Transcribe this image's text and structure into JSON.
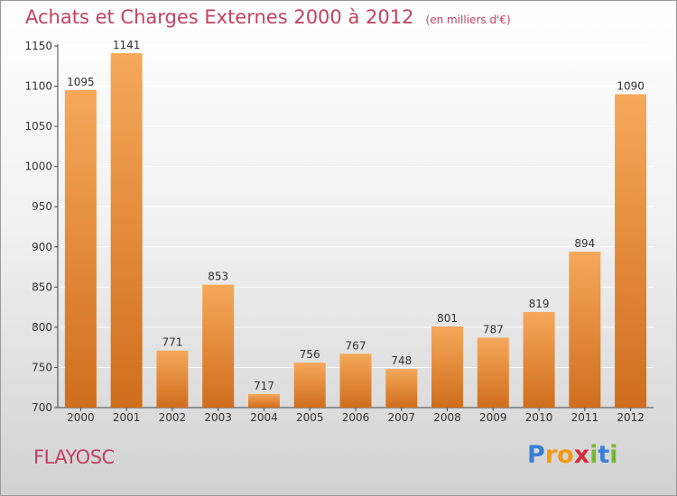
{
  "title": "Achats et Charges Externes 2000 à 2012",
  "unit_note": "(en milliers d'€)",
  "commune": "FLAYOSC",
  "logo": {
    "text": "Proxiti",
    "letters": [
      {
        "ch": "P",
        "color": "#3a7fd6"
      },
      {
        "ch": "r",
        "color": "#f19a16"
      },
      {
        "ch": "o",
        "color": "#f19a16"
      },
      {
        "ch": "x",
        "color": "#cf2e3c"
      },
      {
        "ch": "i",
        "color": "#77b830"
      },
      {
        "ch": "t",
        "color": "#3a7fd6"
      },
      {
        "ch": "i",
        "color": "#77b830"
      }
    ]
  },
  "colors": {
    "title": "#c14260",
    "bar_light": "#f6a85a",
    "bar_dark": "#cf6e1c",
    "axis": "#444444"
  },
  "chart_data": {
    "type": "bar",
    "categories": [
      "2000",
      "2001",
      "2002",
      "2003",
      "2004",
      "2005",
      "2006",
      "2007",
      "2008",
      "2009",
      "2010",
      "2011",
      "2012"
    ],
    "values": [
      1095,
      1141,
      771,
      853,
      717,
      756,
      767,
      748,
      801,
      787,
      819,
      894,
      1090
    ],
    "ylim": [
      700,
      1150
    ],
    "yticks": [
      700,
      750,
      800,
      850,
      900,
      950,
      1000,
      1050,
      1100,
      1150
    ],
    "grid": true,
    "legend": "none"
  }
}
